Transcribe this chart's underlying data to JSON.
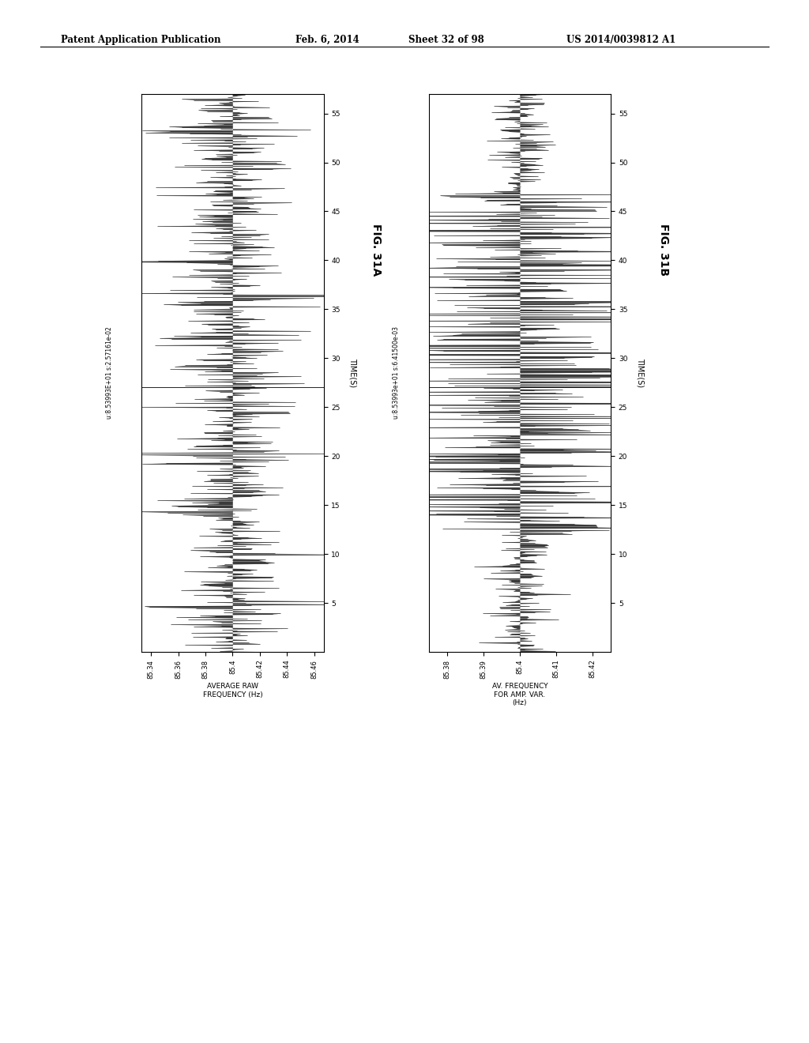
{
  "page_title_left": "Patent Application Publication",
  "page_title_mid": "Feb. 6, 2014",
  "page_title_sheet": "Sheet 32 of 98",
  "page_title_right": "US 2014/0039812 A1",
  "fig_a_label": "FIG. 31A",
  "fig_b_label": "FIG. 31B",
  "plot1_stat": "u:8.53993E+01 s:2.57161e-02",
  "plot2_stat": "u:8.53993e+01 s:6.41500e-03",
  "plot1_xlabel_bottom": "AVERAGE RAW\nFREQUENCY (Hz)",
  "plot2_xlabel_bottom": "AV. FREQUENCY\nFOR AMP. VAR.\n(Hz)",
  "time_label": "TIME(S)",
  "plot1_xticks": [
    85.34,
    85.36,
    85.38,
    85.4,
    85.42,
    85.44,
    85.46
  ],
  "plot1_xtick_labels": [
    "85.34",
    "85.36",
    "85.38",
    "85.4",
    "85.42",
    "85.44",
    "85.46"
  ],
  "plot2_xticks": [
    85.38,
    85.39,
    85.4,
    85.41,
    85.42
  ],
  "plot2_xtick_labels": [
    "85.38",
    "85.39",
    "85.4",
    "85.41",
    "85.42"
  ],
  "yticks": [
    5,
    10,
    15,
    20,
    25,
    30,
    35,
    40,
    45,
    50,
    55
  ],
  "yrange": [
    0,
    57
  ],
  "plot1_xrange": [
    85.333,
    85.467
  ],
  "plot2_xrange": [
    85.375,
    85.425
  ],
  "mean1": 85.4,
  "std1": 0.02,
  "mean2": 85.4,
  "std2": 0.006,
  "background_color": "#f0f0f0",
  "signal_color": "#111111",
  "fill_color": "#222222",
  "seed1": 7,
  "seed2": 99,
  "n_points1": 550,
  "n_points2": 550
}
